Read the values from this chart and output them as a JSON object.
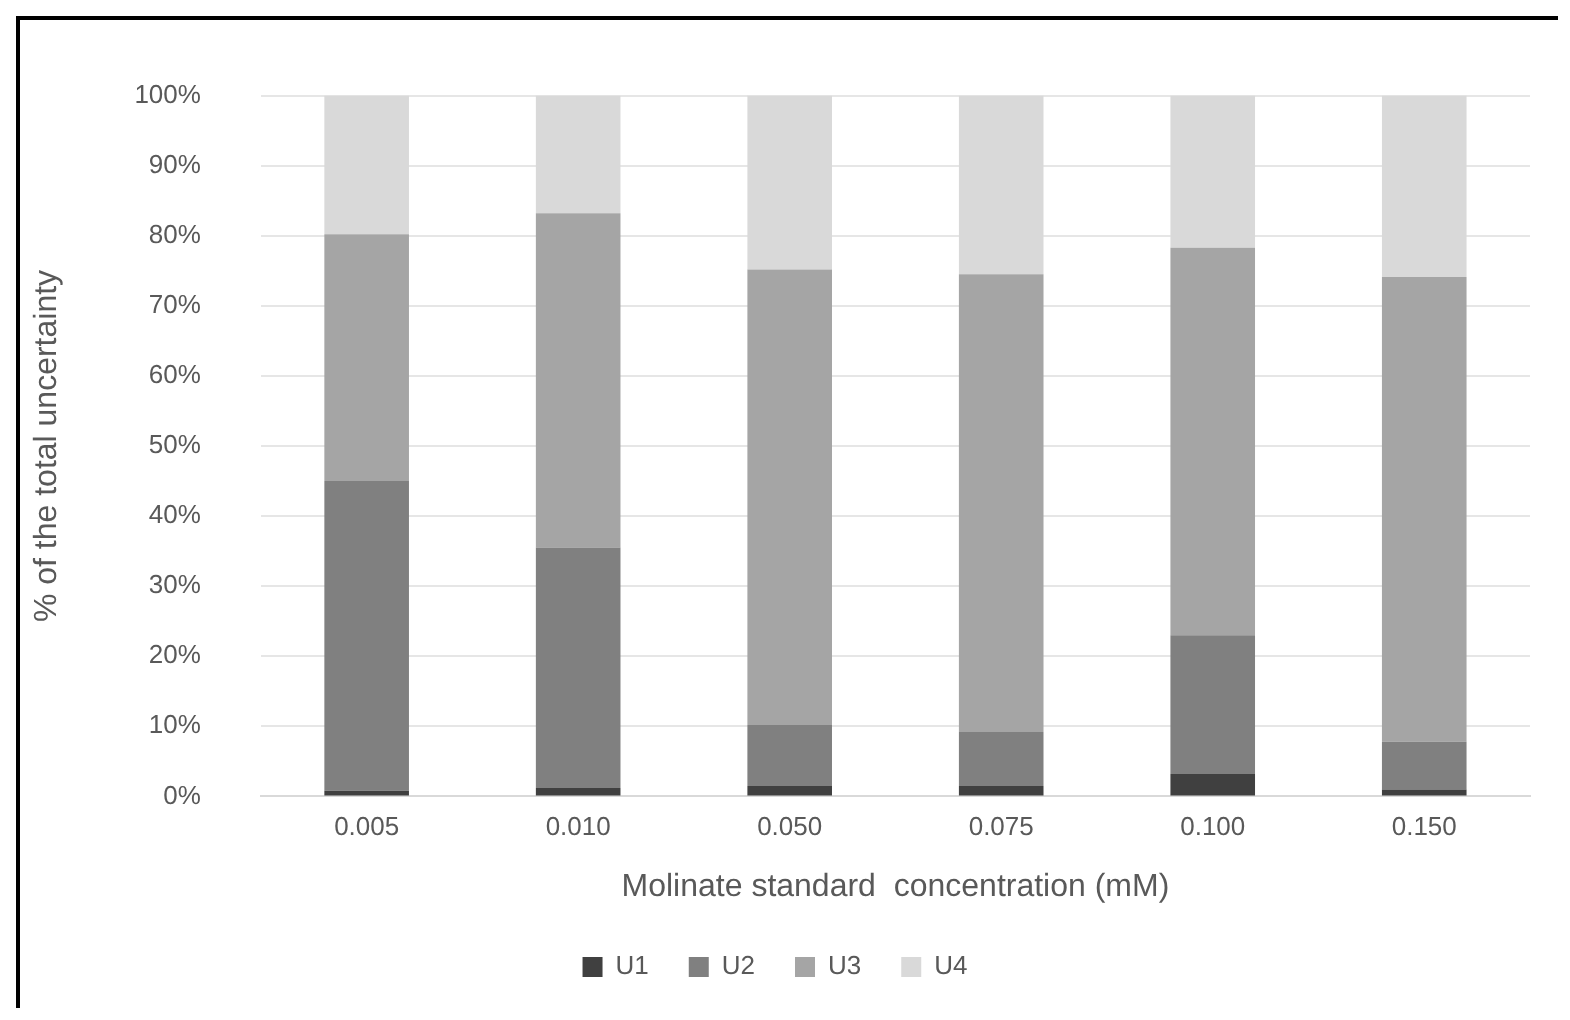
{
  "chart_data": {
    "type": "bar",
    "stacked": true,
    "xlabel": "Molinate standard  concentration (mM)",
    "ylabel": "% of the total uncertainty",
    "categories": [
      "0.005",
      "0.010",
      "0.050",
      "0.075",
      "0.100",
      "0.150"
    ],
    "series": [
      {
        "name": "U1",
        "color": "#404040",
        "values": [
          0.8,
          1.2,
          1.5,
          1.5,
          3.2,
          1.0
        ]
      },
      {
        "name": "U2",
        "color": "#808080",
        "values": [
          44.2,
          34.3,
          8.7,
          7.7,
          19.8,
          6.8
        ]
      },
      {
        "name": "U3",
        "color": "#a5a5a5",
        "values": [
          35.2,
          47.7,
          65.0,
          65.3,
          55.3,
          66.3
        ]
      },
      {
        "name": "U4",
        "color": "#d9d9d9",
        "values": [
          19.8,
          16.8,
          24.8,
          25.5,
          21.7,
          25.9
        ]
      }
    ],
    "ylim": [
      0,
      100
    ],
    "yticks": [
      {
        "value": 0,
        "label": "0%"
      },
      {
        "value": 10,
        "label": "10%"
      },
      {
        "value": 20,
        "label": "20%"
      },
      {
        "value": 30,
        "label": "30%"
      },
      {
        "value": 40,
        "label": "40%"
      },
      {
        "value": 50,
        "label": "50%"
      },
      {
        "value": 60,
        "label": "60%"
      },
      {
        "value": 70,
        "label": "70%"
      },
      {
        "value": 80,
        "label": "80%"
      },
      {
        "value": 90,
        "label": "90%"
      },
      {
        "value": 100,
        "label": "100%"
      }
    ],
    "grid": "y",
    "legend": "bottom"
  }
}
